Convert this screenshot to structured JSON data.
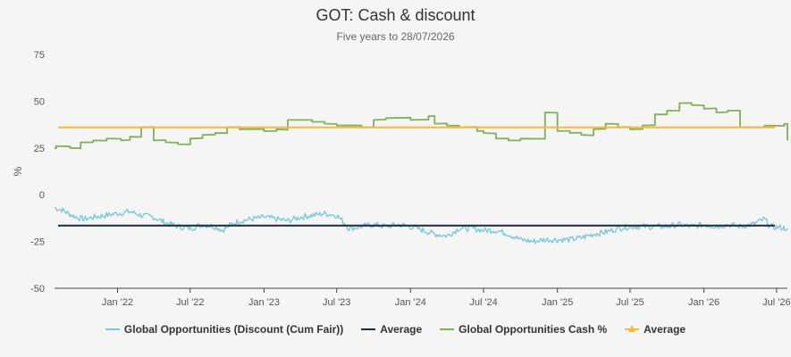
{
  "chart_data": {
    "type": "line",
    "title": "GOT: Cash & discount",
    "subtitle": "Five years to 28/07/2026",
    "ylabel": "%",
    "xlabel": "",
    "ylim": [
      -50,
      75
    ],
    "yticks": [
      75,
      50,
      25,
      0,
      -25,
      -50
    ],
    "xlim": [
      "2021-07-28",
      "2026-07-28"
    ],
    "xticks": [
      {
        "date": "2022-01-01",
        "label": "Jan '22"
      },
      {
        "date": "2022-07-01",
        "label": "Jul '22"
      },
      {
        "date": "2023-01-01",
        "label": "Jan '23"
      },
      {
        "date": "2023-07-01",
        "label": "Jul '23"
      },
      {
        "date": "2024-01-01",
        "label": "Jan '24"
      },
      {
        "date": "2024-07-01",
        "label": "Jul '24"
      },
      {
        "date": "2025-01-01",
        "label": "Jan '25"
      },
      {
        "date": "2025-07-01",
        "label": "Jul '25"
      },
      {
        "date": "2026-01-01",
        "label": "Jan '26"
      },
      {
        "date": "2026-07-01",
        "label": "Jul '26"
      }
    ],
    "grid": false,
    "legend_position": "bottom",
    "series": [
      {
        "name": "Global Opportunities (Discount (Cum Fair))",
        "color": "#7ec8dc",
        "legend_marker": "line",
        "points": [
          [
            "2021-07-28",
            -7
          ],
          [
            "2021-08-15",
            -8
          ],
          [
            "2021-09-01",
            -10
          ],
          [
            "2021-09-20",
            -12
          ],
          [
            "2021-10-10",
            -13
          ],
          [
            "2021-11-01",
            -12
          ],
          [
            "2021-12-01",
            -11
          ],
          [
            "2022-01-01",
            -10
          ],
          [
            "2022-02-01",
            -9
          ],
          [
            "2022-03-01",
            -11
          ],
          [
            "2022-04-01",
            -12
          ],
          [
            "2022-05-01",
            -15
          ],
          [
            "2022-06-01",
            -17
          ],
          [
            "2022-07-01",
            -18
          ],
          [
            "2022-08-01",
            -16
          ],
          [
            "2022-09-01",
            -17
          ],
          [
            "2022-09-20",
            -19
          ],
          [
            "2022-10-10",
            -16
          ],
          [
            "2022-11-01",
            -14
          ],
          [
            "2022-12-01",
            -13
          ],
          [
            "2023-01-01",
            -12
          ],
          [
            "2023-02-01",
            -13
          ],
          [
            "2023-03-01",
            -14
          ],
          [
            "2023-04-01",
            -12
          ],
          [
            "2023-05-01",
            -11
          ],
          [
            "2023-06-01",
            -10
          ],
          [
            "2023-07-01",
            -11
          ],
          [
            "2023-07-20",
            -15
          ],
          [
            "2023-08-01",
            -18
          ],
          [
            "2023-09-01",
            -17
          ],
          [
            "2023-10-01",
            -16
          ],
          [
            "2023-11-01",
            -17
          ],
          [
            "2023-12-01",
            -16
          ],
          [
            "2024-01-01",
            -17
          ],
          [
            "2024-02-01",
            -19
          ],
          [
            "2024-03-01",
            -21
          ],
          [
            "2024-04-01",
            -22
          ],
          [
            "2024-05-01",
            -18
          ],
          [
            "2024-06-01",
            -18
          ],
          [
            "2024-07-01",
            -19
          ],
          [
            "2024-08-01",
            -19
          ],
          [
            "2024-09-01",
            -21
          ],
          [
            "2024-10-01",
            -24
          ],
          [
            "2024-11-01",
            -25
          ],
          [
            "2024-12-01",
            -24
          ],
          [
            "2025-01-01",
            -24
          ],
          [
            "2025-02-01",
            -24
          ],
          [
            "2025-03-01",
            -23
          ],
          [
            "2025-04-01",
            -21
          ],
          [
            "2025-05-01",
            -20
          ],
          [
            "2025-06-01",
            -18
          ],
          [
            "2025-07-01",
            -17
          ],
          [
            "2025-08-01",
            -17
          ],
          [
            "2025-09-01",
            -17
          ],
          [
            "2025-10-01",
            -17
          ],
          [
            "2025-11-01",
            -16
          ],
          [
            "2025-12-01",
            -17
          ],
          [
            "2026-01-01",
            -16
          ],
          [
            "2026-02-01",
            -17
          ],
          [
            "2026-03-01",
            -16
          ],
          [
            "2026-04-01",
            -17
          ],
          [
            "2026-05-01",
            -16
          ],
          [
            "2026-06-01",
            -13
          ],
          [
            "2026-06-15",
            -17
          ],
          [
            "2026-07-28",
            -18
          ]
        ]
      },
      {
        "name": "Average",
        "color": "#1c2b39",
        "legend_marker": "line",
        "constant": -16.5
      },
      {
        "name": "Global Opportunities Cash %",
        "color": "#7fb05a",
        "legend_marker": "line",
        "step": true,
        "points": [
          [
            "2021-07-28",
            25
          ],
          [
            "2021-08-01",
            26
          ],
          [
            "2021-09-05",
            25
          ],
          [
            "2021-10-01",
            28
          ],
          [
            "2021-11-01",
            29
          ],
          [
            "2021-12-05",
            30
          ],
          [
            "2022-01-10",
            29
          ],
          [
            "2022-02-01",
            31
          ],
          [
            "2022-03-01",
            36
          ],
          [
            "2022-04-01",
            29
          ],
          [
            "2022-05-01",
            28
          ],
          [
            "2022-06-01",
            27
          ],
          [
            "2022-07-01",
            30
          ],
          [
            "2022-08-01",
            32
          ],
          [
            "2022-09-01",
            33
          ],
          [
            "2022-10-01",
            36
          ],
          [
            "2022-11-01",
            35
          ],
          [
            "2023-01-01",
            34
          ],
          [
            "2023-02-01",
            35
          ],
          [
            "2023-03-01",
            40
          ],
          [
            "2023-05-01",
            39
          ],
          [
            "2023-06-01",
            38
          ],
          [
            "2023-07-01",
            37
          ],
          [
            "2023-09-01",
            36
          ],
          [
            "2023-10-01",
            40
          ],
          [
            "2023-11-01",
            41
          ],
          [
            "2024-01-01",
            40
          ],
          [
            "2024-02-15",
            42
          ],
          [
            "2024-03-01",
            38
          ],
          [
            "2024-04-01",
            37
          ],
          [
            "2024-05-01",
            36
          ],
          [
            "2024-06-15",
            34
          ],
          [
            "2024-07-01",
            33
          ],
          [
            "2024-08-01",
            30
          ],
          [
            "2024-09-01",
            29
          ],
          [
            "2024-10-01",
            30
          ],
          [
            "2024-12-01",
            44
          ],
          [
            "2025-01-01",
            34
          ],
          [
            "2025-02-01",
            33
          ],
          [
            "2025-03-01",
            32
          ],
          [
            "2025-04-01",
            35
          ],
          [
            "2025-05-01",
            38
          ],
          [
            "2025-06-01",
            36
          ],
          [
            "2025-07-01",
            35
          ],
          [
            "2025-08-01",
            37
          ],
          [
            "2025-09-01",
            43
          ],
          [
            "2025-10-01",
            45
          ],
          [
            "2025-11-01",
            49
          ],
          [
            "2025-12-01",
            48
          ],
          [
            "2026-01-01",
            46
          ],
          [
            "2026-02-01",
            44
          ],
          [
            "2026-03-01",
            45
          ],
          [
            "2026-04-01",
            36
          ],
          [
            "2026-06-01",
            37
          ],
          [
            "2026-07-20",
            38
          ],
          [
            "2026-07-28",
            29
          ]
        ]
      },
      {
        "name": "Average",
        "color": "#f2b93b",
        "legend_marker": "triangle",
        "constant": 36
      }
    ]
  }
}
